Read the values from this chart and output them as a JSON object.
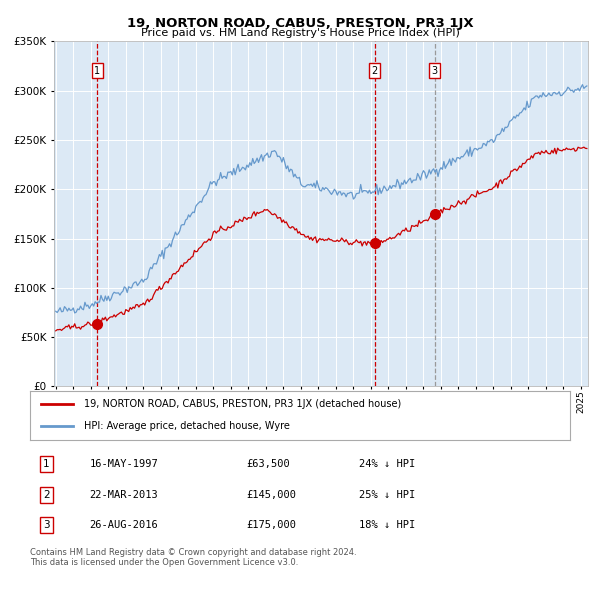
{
  "title": "19, NORTON ROAD, CABUS, PRESTON, PR3 1JX",
  "subtitle": "Price paid vs. HM Land Registry's House Price Index (HPI)",
  "legend_line1": "19, NORTON ROAD, CABUS, PRESTON, PR3 1JX (detached house)",
  "legend_line2": "HPI: Average price, detached house, Wyre",
  "table_rows": [
    {
      "num": "1",
      "date": "16-MAY-1997",
      "price": "£63,500",
      "pct": "24% ↓ HPI"
    },
    {
      "num": "2",
      "date": "22-MAR-2013",
      "price": "£145,000",
      "pct": "25% ↓ HPI"
    },
    {
      "num": "3",
      "date": "26-AUG-2016",
      "price": "£175,000",
      "pct": "18% ↓ HPI"
    }
  ],
  "footer": "Contains HM Land Registry data © Crown copyright and database right 2024.\nThis data is licensed under the Open Government Licence v3.0.",
  "sale_years": [
    1997.37,
    2013.22,
    2016.65
  ],
  "sale_prices": [
    63500,
    145000,
    175000
  ],
  "background_color": "#dce9f5",
  "red_line_color": "#cc0000",
  "blue_line_color": "#6699cc",
  "sale_marker_color": "#cc0000",
  "vline_colors": [
    "#cc0000",
    "#cc0000",
    "#999999"
  ],
  "ylim": [
    0,
    350000
  ],
  "yticks": [
    0,
    50000,
    100000,
    150000,
    200000,
    250000,
    300000,
    350000
  ],
  "xlim_start": 1994.9,
  "xlim_end": 2025.4
}
